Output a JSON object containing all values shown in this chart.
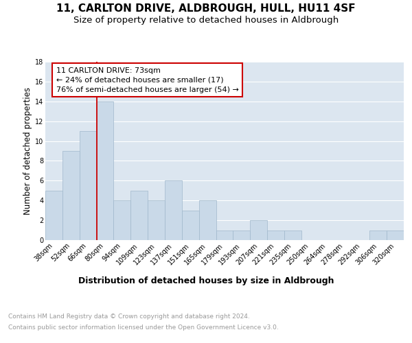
{
  "title": "11, CARLTON DRIVE, ALDBROUGH, HULL, HU11 4SF",
  "subtitle": "Size of property relative to detached houses in Aldbrough",
  "xlabel": "Distribution of detached houses by size in Aldbrough",
  "ylabel": "Number of detached properties",
  "categories": [
    "38sqm",
    "52sqm",
    "66sqm",
    "80sqm",
    "94sqm",
    "109sqm",
    "123sqm",
    "137sqm",
    "151sqm",
    "165sqm",
    "179sqm",
    "193sqm",
    "207sqm",
    "221sqm",
    "235sqm",
    "250sqm",
    "264sqm",
    "278sqm",
    "292sqm",
    "306sqm",
    "320sqm"
  ],
  "values": [
    5,
    9,
    11,
    14,
    4,
    5,
    4,
    6,
    3,
    4,
    1,
    1,
    2,
    1,
    1,
    0,
    0,
    0,
    0,
    1,
    1
  ],
  "bar_color": "#c9d9e8",
  "bar_edge_color": "#a0b8cc",
  "plot_bg_color": "#dce6f0",
  "red_line_color": "#cc0000",
  "annotation_text": "11 CARLTON DRIVE: 73sqm\n← 24% of detached houses are smaller (17)\n76% of semi-detached houses are larger (54) →",
  "annotation_box_color": "#ffffff",
  "annotation_box_edge": "#cc0000",
  "footnote1": "Contains HM Land Registry data © Crown copyright and database right 2024.",
  "footnote2": "Contains public sector information licensed under the Open Government Licence v3.0.",
  "ylim": [
    0,
    18
  ],
  "yticks": [
    0,
    2,
    4,
    6,
    8,
    10,
    12,
    14,
    16,
    18
  ],
  "title_fontsize": 11,
  "subtitle_fontsize": 9.5,
  "xlabel_fontsize": 9,
  "ylabel_fontsize": 8.5,
  "tick_fontsize": 7,
  "annot_fontsize": 8,
  "footnote_fontsize": 6.5
}
